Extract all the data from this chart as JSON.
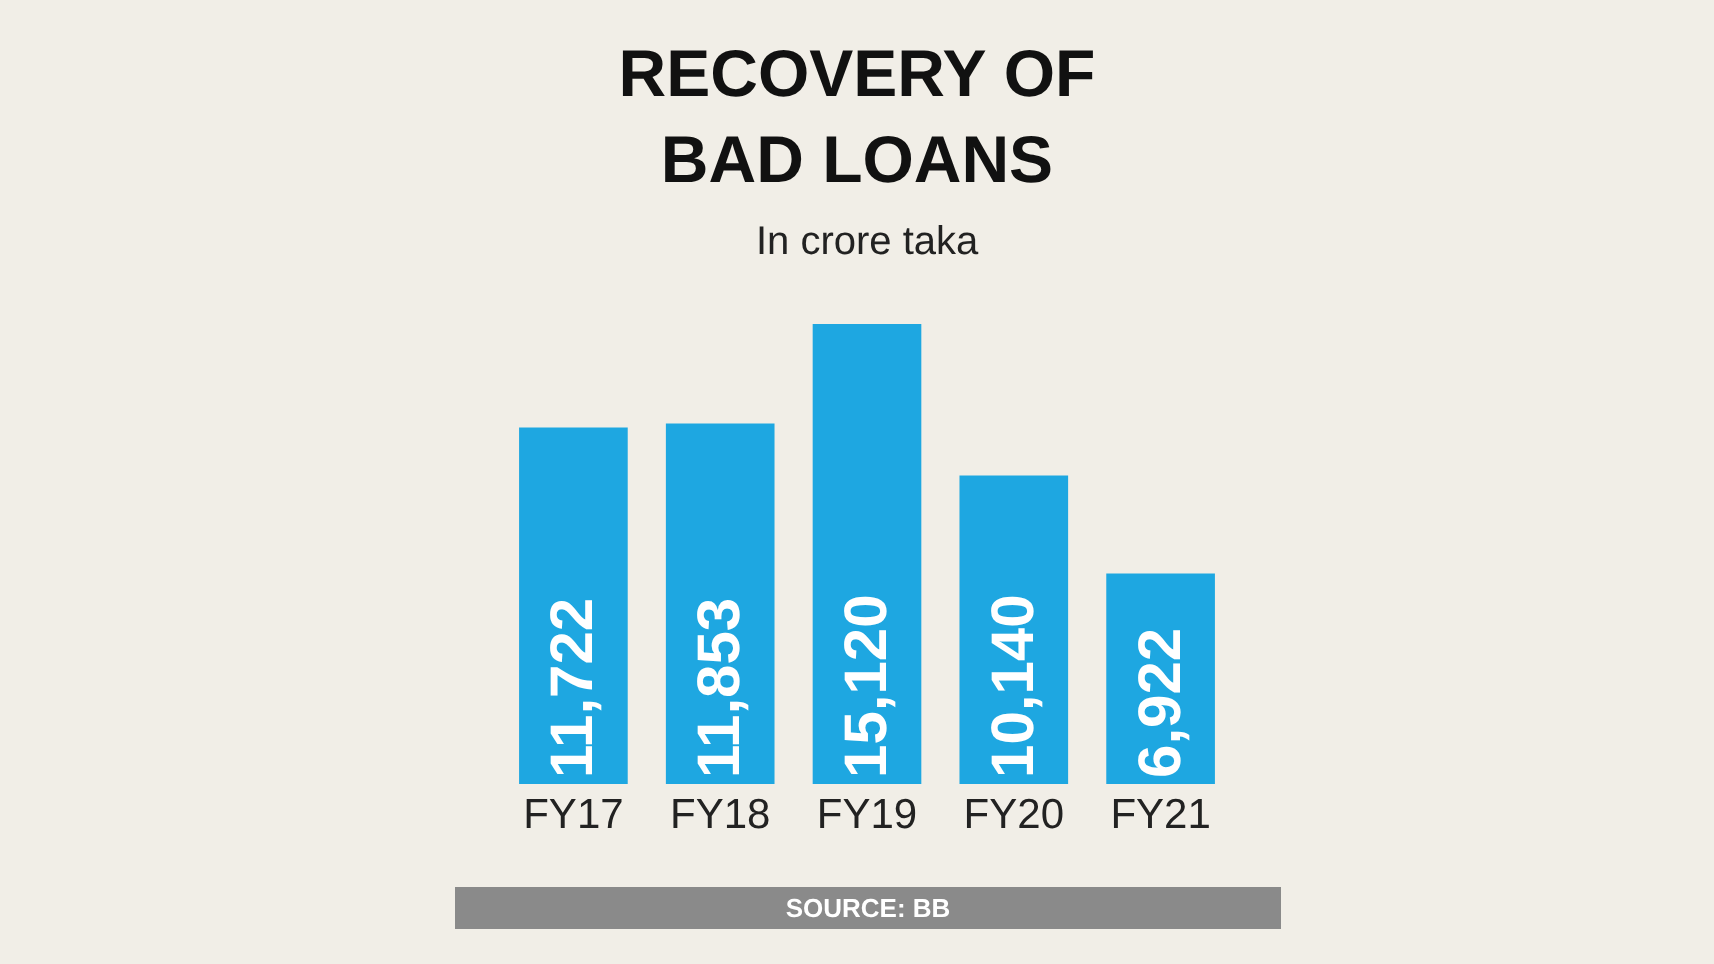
{
  "chart_data": {
    "type": "bar",
    "title": "RECOVERY OF\nBAD LOANS",
    "subtitle": "In crore taka",
    "categories": [
      "FY17",
      "FY18",
      "FY19",
      "FY20",
      "FY21"
    ],
    "values": [
      11722,
      11853,
      15120,
      10140,
      6922
    ],
    "color": "#1ea7e1",
    "value_labels": [
      "11,722",
      "11,853",
      "15,120",
      "10,140",
      "6,922"
    ],
    "annotations": [
      "SOURCE: BB"
    ]
  }
}
